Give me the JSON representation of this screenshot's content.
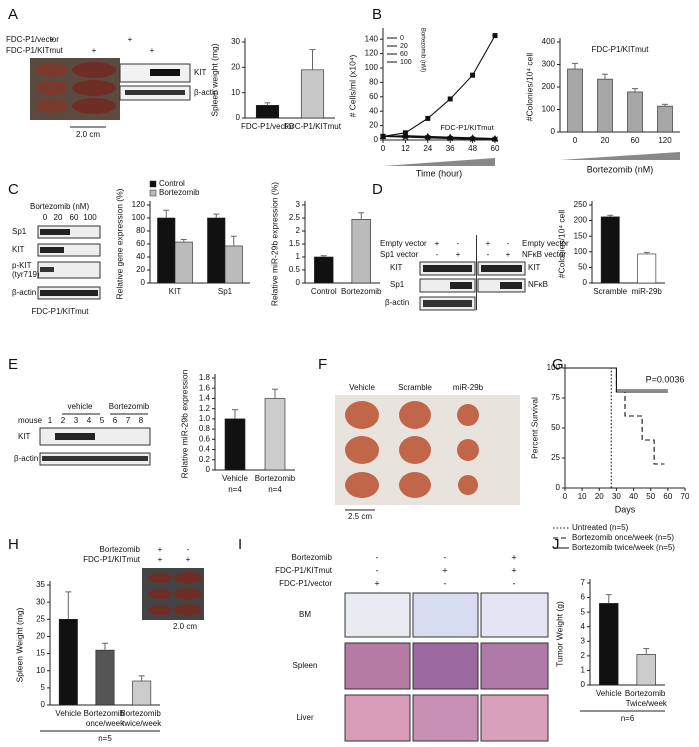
{
  "figure": {
    "panels": [
      "A",
      "B",
      "C",
      "D",
      "E",
      "F",
      "G",
      "H",
      "I",
      "J"
    ],
    "A": {
      "rows": [
        "FDC-P1/vector",
        "FDC-P1/KITmut"
      ],
      "signs": [
        "+",
        "+",
        "+",
        "+"
      ],
      "blot": [
        "KIT",
        "β-actin"
      ],
      "scale": "2.0 cm"
    },
    "C": {
      "treatment": "Bortezomib (nM)",
      "doses": [
        "0",
        "20",
        "60",
        "100"
      ],
      "blot": [
        "Sp1",
        "KIT",
        "p-KIT",
        "(tyr719)",
        "β-actin"
      ],
      "cells": "FDC-P1/KITmut"
    },
    "D": {
      "left_rows": [
        "Empty vector",
        "Sp1 vector"
      ],
      "left_signs": [
        "+",
        "-",
        "-",
        "+"
      ],
      "right_rows": [
        "Empty vector",
        "NFκB vector"
      ],
      "right_signs": [
        "+",
        "-",
        "-",
        "+"
      ],
      "left_blot": [
        "KIT",
        "Sp1",
        "β-actin"
      ],
      "right_blot": [
        "KIT",
        "NFκB"
      ]
    },
    "E": {
      "mouse": "mouse",
      "groups": [
        "vehicle",
        "Bortezomib"
      ],
      "lanes": [
        "1",
        "2",
        "3",
        "4",
        "5",
        "6",
        "7",
        "8"
      ],
      "blot": [
        "KIT",
        "β-actin"
      ]
    },
    "F": {
      "groups": [
        "Vehicle",
        "Scramble",
        "miR-29b"
      ],
      "scale": "2.5 cm"
    },
    "H": {
      "rows": [
        "Bortezomib",
        "FDC-P1/KITmut"
      ],
      "signs": [
        "+",
        "-",
        "+",
        "+"
      ],
      "scale": "2.0 cm"
    },
    "I": {
      "rows": [
        "Bortezomib",
        "FDC-P1/KITmut",
        "FDC-P1/vector"
      ],
      "signs": [
        "-",
        "-",
        "+",
        "-",
        "+",
        "+",
        "+",
        "-",
        "-"
      ],
      "tissues": [
        "BM",
        "Spleen",
        "Liver"
      ]
    }
  },
  "chart_data": [
    {
      "type": "bar",
      "y_label": "Spleen weight (mg)",
      "categories": [
        "FDC-P1/vector",
        "FDC-P1/KITmut"
      ],
      "values": [
        5,
        19
      ],
      "errors": [
        1,
        8
      ],
      "colors": [
        "#111111",
        "#c8c8c8"
      ],
      "ylim": [
        0,
        30
      ],
      "yticks": [
        0,
        10,
        20,
        30
      ]
    },
    {
      "type": "line",
      "y_label": "# Cells/ml (x10⁴)",
      "x_label": "Time (hour)",
      "annotation": "FDC-P1/KITmut",
      "legend_title": "Bortezomib (nM)",
      "x": [
        0,
        12,
        24,
        36,
        48,
        60
      ],
      "xlim": [
        0,
        60
      ],
      "xticks": [
        0,
        12,
        24,
        36,
        48,
        60
      ],
      "ylim": [
        0,
        150
      ],
      "yticks": [
        0,
        20,
        40,
        60,
        80,
        100,
        120,
        140
      ],
      "series": [
        {
          "name": "0",
          "marker": "square",
          "values": [
            5,
            10,
            30,
            57,
            90,
            145
          ]
        },
        {
          "name": "20",
          "marker": "triangle",
          "values": [
            5,
            6,
            5,
            4,
            3,
            2
          ]
        },
        {
          "name": "60",
          "marker": "circle",
          "values": [
            5,
            5,
            4,
            3,
            2,
            1
          ]
        },
        {
          "name": "100",
          "marker": "cross",
          "values": [
            5,
            4,
            3,
            2,
            1,
            1
          ]
        }
      ]
    },
    {
      "type": "bar",
      "y_label": "#Colonies/10⁴ cell",
      "x_label": "Bortezomib (nM)",
      "annotation": "FDC-P1/KITmut",
      "categories": [
        "0",
        "20",
        "60",
        "120"
      ],
      "values": [
        280,
        235,
        178,
        115
      ],
      "errors": [
        25,
        22,
        15,
        8
      ],
      "color": "#a6a6a6",
      "ylim": [
        0,
        400
      ],
      "yticks": [
        0,
        100,
        200,
        300,
        400
      ]
    },
    {
      "type": "bar",
      "y_label": "Relative gene expression (%)",
      "categories": [
        "KIT",
        "Sp1"
      ],
      "series": [
        {
          "name": "Control",
          "color": "#111111",
          "values": [
            100,
            100
          ],
          "errors": [
            12,
            6
          ]
        },
        {
          "name": "Bortezomib",
          "color": "#bbbbbb",
          "values": [
            63,
            57
          ],
          "errors": [
            4,
            15
          ]
        }
      ],
      "ylim": [
        0,
        120
      ],
      "yticks": [
        0,
        20,
        40,
        60,
        80,
        100,
        120
      ]
    },
    {
      "type": "bar",
      "y_label": "Relative miR-29b expression (%)",
      "categories": [
        "Control",
        "Bortezomib"
      ],
      "values": [
        1,
        2.45
      ],
      "errors": [
        0.05,
        0.25
      ],
      "colors": [
        "#111111",
        "#bbbbbb"
      ],
      "ylim": [
        0,
        3
      ],
      "yticks": [
        0,
        0.5,
        1,
        1.5,
        2,
        2.5,
        3
      ]
    },
    {
      "type": "bar",
      "y_label": "#Colonies/10⁴ cell",
      "categories": [
        "Scramble",
        "miR-29b"
      ],
      "values": [
        212,
        93
      ],
      "errors": [
        5,
        5
      ],
      "colors": [
        "#111111",
        "#ffffff"
      ],
      "ylim": [
        0,
        250
      ],
      "yticks": [
        0,
        50,
        100,
        150,
        200,
        250
      ]
    },
    {
      "type": "bar",
      "y_label": "Relative miR-29b expression",
      "categories": [
        "Vehicle",
        "Bortezomib"
      ],
      "category_notes": [
        "n=4",
        "n=4"
      ],
      "values": [
        1.0,
        1.4
      ],
      "errors": [
        0.18,
        0.18
      ],
      "colors": [
        "#111111",
        "#cccccc"
      ],
      "ylim": [
        0,
        1.8
      ],
      "yticks": [
        0,
        0.2,
        0.4,
        0.6,
        0.8,
        {
          "value": 1,
          "label": "1.0"
        },
        1.2,
        1.4,
        1.6,
        1.8
      ]
    },
    {
      "type": "line",
      "y_label": "Percent Survival",
      "x_label": "Days",
      "annotation": "P=0.0036",
      "xlim": [
        0,
        70
      ],
      "xticks": [
        0,
        10,
        20,
        30,
        40,
        50,
        60,
        70
      ],
      "ylim": [
        0,
        100
      ],
      "yticks": [
        0,
        25,
        50,
        75,
        100
      ],
      "series": [
        {
          "name": "Untreated (n=5)",
          "dash": "dotted",
          "x": [
            0,
            27,
            27,
            29
          ],
          "values": [
            100,
            100,
            0,
            0
          ]
        },
        {
          "name": "Bortezomib once/week (n=5)",
          "dash": "dashed",
          "x": [
            0,
            30,
            30,
            35,
            35,
            45,
            45,
            52,
            52,
            58
          ],
          "values": [
            100,
            100,
            80,
            80,
            60,
            60,
            40,
            40,
            20,
            20
          ]
        },
        {
          "name": "Bortezomib twice/week (n=5)",
          "dash": "solid",
          "x": [
            0,
            30,
            30,
            60
          ],
          "values": [
            100,
            100,
            80,
            80
          ]
        }
      ]
    },
    {
      "type": "bar",
      "y_label": "Spleen Weight (mg)",
      "categories": [
        "Vehicle",
        "Bortezomib once/week",
        "Bortezomib twice/week"
      ],
      "note": "n=5",
      "values": [
        25,
        16,
        7
      ],
      "errors": [
        8,
        2,
        1.5
      ],
      "colors": [
        "#111111",
        "#555555",
        "#cccccc"
      ],
      "ylim": [
        0,
        35
      ],
      "yticks": [
        0,
        5,
        10,
        15,
        20,
        25,
        30,
        35
      ]
    },
    {
      "type": "bar",
      "y_label": "Tumor Weight (g)",
      "categories": [
        "Vehicle",
        "Bortezomib Twice/week"
      ],
      "note": "n=6",
      "values": [
        5.6,
        2.1
      ],
      "errors": [
        0.6,
        0.4
      ],
      "colors": [
        "#111111",
        "#cccccc"
      ],
      "ylim": [
        0,
        7
      ],
      "yticks": [
        0,
        1,
        2,
        3,
        4,
        5,
        6,
        7
      ]
    }
  ]
}
